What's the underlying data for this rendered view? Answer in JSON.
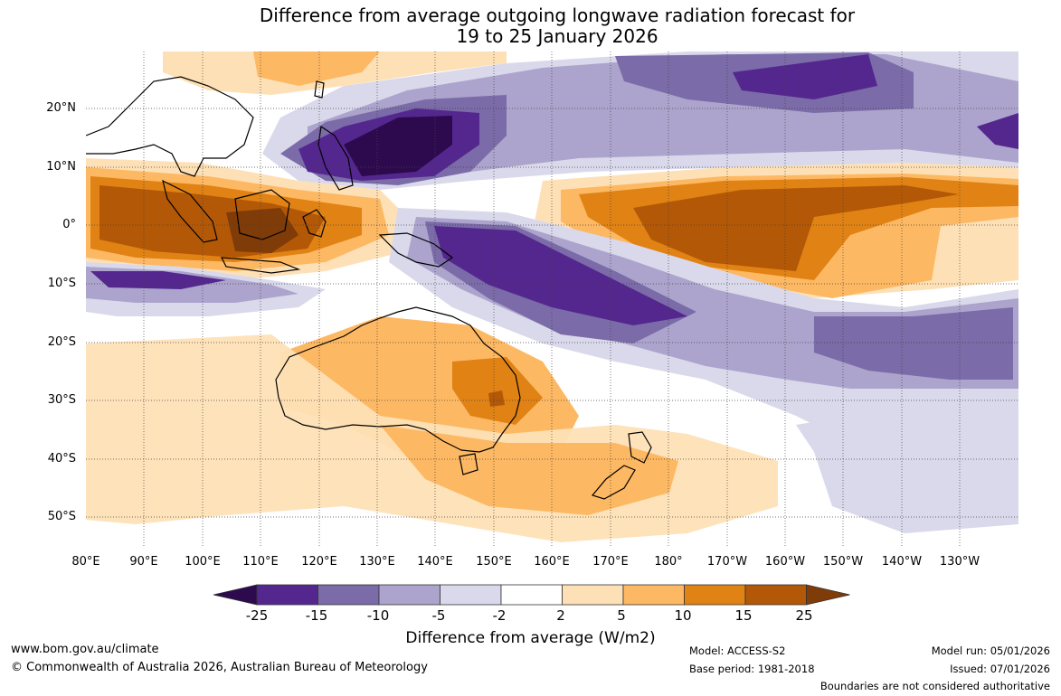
{
  "title_line1": "Difference from average outgoing longwave radiation forecast for",
  "title_line2": "19 to 25 January 2026",
  "lat_labels": [
    "20°N",
    "10°N",
    "0°",
    "10°S",
    "20°S",
    "30°S",
    "40°S",
    "50°S"
  ],
  "lon_labels": [
    "80°E",
    "90°E",
    "100°E",
    "110°E",
    "120°E",
    "130°E",
    "140°E",
    "150°E",
    "160°E",
    "170°E",
    "180°",
    "170°W",
    "160°W",
    "150°W",
    "140°W",
    "130°W"
  ],
  "colorbar": {
    "title": "Difference from average (W/m2)",
    "tick_labels": [
      "-25",
      "-15",
      "-10",
      "-5",
      "-2",
      "2",
      "5",
      "10",
      "15",
      "25"
    ],
    "colors": [
      "#2d0a4e",
      "#54278f",
      "#7b6ba8",
      "#aca4cc",
      "#d9d9eb",
      "#ffffff",
      "#fee0b6",
      "#fdb863",
      "#e08214",
      "#b35806",
      "#7f3b08"
    ]
  },
  "footer": {
    "site": "www.bom.gov.au/climate",
    "copyright": "© Commonwealth of Australia 2026, Australian Bureau of Meteorology",
    "model": "Model: ACCESS-S2",
    "base_period": "Base period: 1981-2018",
    "model_run": "Model run: 05/01/2026",
    "issued": "Issued: 07/01/2026",
    "boundaries": "Boundaries are not considered authoritative"
  }
}
